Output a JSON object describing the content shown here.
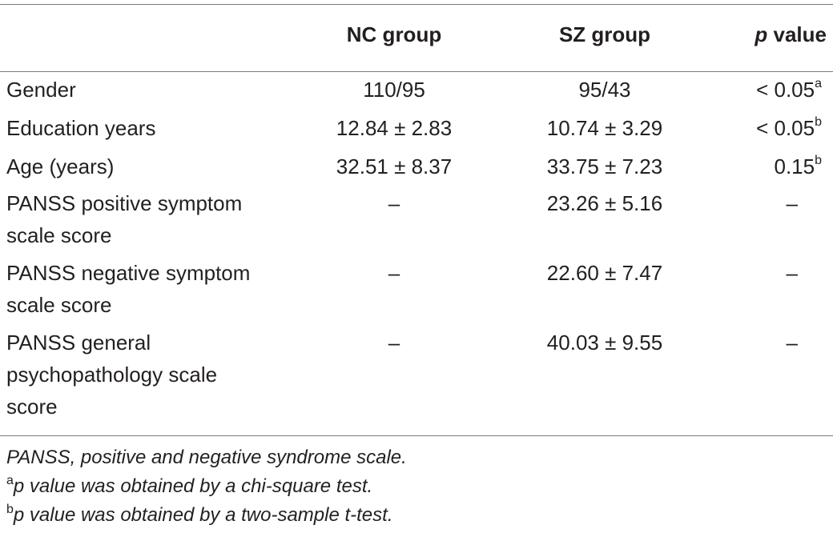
{
  "header": {
    "col_nc": "NC group",
    "col_sz": "SZ group",
    "col_p_italic": "p",
    "col_p_rest": " value"
  },
  "rows": [
    {
      "label": "Gender",
      "nc": "110/95",
      "sz": "95/43",
      "p": "< 0.05",
      "p_sup": "a"
    },
    {
      "label": "Education years",
      "nc": "12.84 ± 2.83",
      "sz": "10.74 ± 3.29",
      "p": "< 0.05",
      "p_sup": "b"
    },
    {
      "label": "Age (years)",
      "nc": "32.51 ± 8.37",
      "sz": "33.75 ± 7.23",
      "p": "0.15",
      "p_sup": "b"
    },
    {
      "label": "PANSS positive symptom scale score",
      "nc": "–",
      "sz": "23.26 ± 5.16",
      "p": "–",
      "p_sup": ""
    },
    {
      "label": "PANSS negative symptom scale score",
      "nc": "–",
      "sz": "22.60 ± 7.47",
      "p": "–",
      "p_sup": ""
    },
    {
      "label": "PANSS general psychopathology scale score",
      "nc": "–",
      "sz": "40.03 ± 9.55",
      "p": "–",
      "p_sup": ""
    }
  ],
  "footnotes": {
    "abbrev": "PANSS, positive and negative syndrome scale.",
    "a_mark": "a",
    "a_text": "p value was obtained by a chi-square test.",
    "b_mark": "b",
    "b_text": "p value was obtained by a two-sample t-test."
  }
}
